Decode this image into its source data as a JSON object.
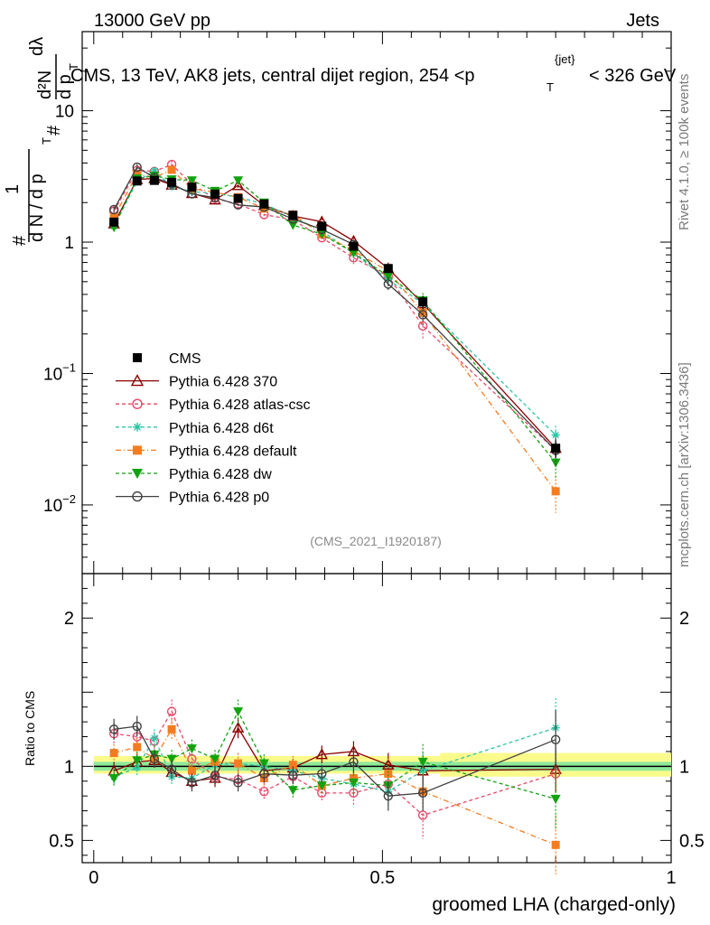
{
  "header": {
    "energy_label": "13000 GeV pp",
    "category_label": "Jets"
  },
  "side_labels": {
    "rivet": "Rivet 4.1.0, ≥ 100k events",
    "mcplots": "mcplots.cern.ch [arXiv:1306.3436]"
  },
  "analysis_ref": "(CMS_2021_I1920187)",
  "chart_data": [
    {
      "type": "line",
      "yscale": "log",
      "title_main": "CMS, 13 TeV, AK8 jets, central dijet region, 254 <",
      "title_var": "p",
      "title_sup": "{jet}",
      "title_sub": "T",
      "title_end": "< 326 GeV",
      "ylabel": "1/dN/dpT dN^2/dpT dλ",
      "ylabel_parts": {
        "num1": "#",
        "den1": "d N / d p",
        "num2": "d²N",
        "den2": "d p",
        "tail": "dλ",
        "sub": "T"
      },
      "xlim": [
        -0.02,
        1.0
      ],
      "ylim": [
        0.003,
        40
      ],
      "yticks": [
        {
          "value": 0.01,
          "base": "10",
          "exp": "−2"
        },
        {
          "value": 0.1,
          "base": "10",
          "exp": "−1"
        },
        {
          "value": 1,
          "base": "1",
          "exp": ""
        },
        {
          "value": 10,
          "base": "10",
          "exp": ""
        }
      ],
      "x": [
        0.035,
        0.075,
        0.105,
        0.135,
        0.17,
        0.21,
        0.25,
        0.295,
        0.345,
        0.395,
        0.45,
        0.51,
        0.57,
        0.8
      ],
      "series": [
        {
          "name": "CMS",
          "color": "#000000",
          "marker": "square",
          "dash": "",
          "errors": [
            0.08,
            0.2,
            0.15,
            0.15,
            0.14,
            0.12,
            0.12,
            0.1,
            0.08,
            0.07,
            0.06,
            0.05,
            0.04,
            0.004
          ],
          "values": [
            1.42,
            2.92,
            2.95,
            2.85,
            2.62,
            2.32,
            2.15,
            1.95,
            1.6,
            1.32,
            0.93,
            0.63,
            0.35,
            0.027
          ]
        },
        {
          "name": "Pythia 6.428 370",
          "color": "#8b0000",
          "marker": "triangle",
          "dash": "",
          "errors": [
            0.1,
            0.2,
            0.18,
            0.18,
            0.15,
            0.15,
            0.15,
            0.12,
            0.1,
            0.08,
            0.07,
            0.06,
            0.04,
            0.006
          ],
          "values": [
            1.38,
            3.0,
            3.05,
            2.72,
            2.35,
            2.1,
            2.7,
            1.9,
            1.58,
            1.43,
            1.02,
            0.63,
            0.34,
            0.027
          ]
        },
        {
          "name": "Pythia 6.428 atlas-csc",
          "color": "#e8476a",
          "marker": "circle",
          "dash": "4,3",
          "errors": [
            0.1,
            0.25,
            0.2,
            0.25,
            0.15,
            0.15,
            0.15,
            0.12,
            0.1,
            0.08,
            0.08,
            0.06,
            0.05,
            0.006
          ],
          "values": [
            1.72,
            3.52,
            3.45,
            3.9,
            2.75,
            2.15,
            1.95,
            1.62,
            1.48,
            1.08,
            0.76,
            0.55,
            0.23,
            0.026
          ]
        },
        {
          "name": "Pythia 6.428 d6t",
          "color": "#2ec4a5",
          "marker": "asterisk",
          "dash": "4,3",
          "errors": [
            0.1,
            0.2,
            0.18,
            0.18,
            0.15,
            0.15,
            0.15,
            0.12,
            0.1,
            0.08,
            0.07,
            0.06,
            0.05,
            0.006
          ],
          "values": [
            1.32,
            2.9,
            3.5,
            2.65,
            2.42,
            2.35,
            2.2,
            1.95,
            1.55,
            1.22,
            0.82,
            0.52,
            0.34,
            0.034
          ]
        },
        {
          "name": "Pythia 6.428 default",
          "color": "#f47c20",
          "marker": "square",
          "dash": "6,3,1,3",
          "errors": [
            0.1,
            0.2,
            0.18,
            0.2,
            0.15,
            0.15,
            0.15,
            0.12,
            0.1,
            0.08,
            0.07,
            0.06,
            0.05,
            0.004
          ],
          "values": [
            1.55,
            3.3,
            3.1,
            3.55,
            2.55,
            2.4,
            2.2,
            1.8,
            1.62,
            1.15,
            0.86,
            0.6,
            0.29,
            0.0127
          ]
        },
        {
          "name": "Pythia 6.428 dw",
          "color": "#11a30f",
          "marker": "triangle-down",
          "dash": "4,3",
          "errors": [
            0.1,
            0.2,
            0.18,
            0.18,
            0.15,
            0.15,
            0.15,
            0.12,
            0.1,
            0.08,
            0.07,
            0.06,
            0.05,
            0.005
          ],
          "values": [
            1.3,
            3.05,
            3.2,
            3.0,
            2.95,
            2.45,
            2.95,
            2.0,
            1.35,
            1.15,
            0.83,
            0.55,
            0.36,
            0.021
          ]
        },
        {
          "name": "Pythia 6.428 p0",
          "color": "#404040",
          "marker": "circle",
          "dash": "",
          "errors": [
            0.1,
            0.2,
            0.18,
            0.18,
            0.15,
            0.15,
            0.15,
            0.12,
            0.1,
            0.08,
            0.07,
            0.06,
            0.05,
            0.006
          ],
          "values": [
            1.77,
            3.72,
            3.1,
            2.78,
            2.33,
            2.18,
            1.92,
            1.85,
            1.5,
            1.25,
            0.96,
            0.48,
            0.28,
            0.026
          ]
        }
      ]
    },
    {
      "type": "line",
      "ylabel": "Ratio to CMS",
      "xlabel": "groomed LHA (charged-only)",
      "xlim": [
        -0.02,
        1.0
      ],
      "ylim": [
        0.35,
        2.3
      ],
      "xticks": [
        {
          "value": 0,
          "label": "0"
        },
        {
          "value": 0.5,
          "label": "0.5"
        },
        {
          "value": 1,
          "label": "1"
        }
      ],
      "yticks": [
        {
          "value": 0.5,
          "label": "0.5"
        },
        {
          "value": 1,
          "label": "1"
        },
        {
          "value": 2,
          "label": "2"
        }
      ],
      "band_inner_frac": 0.03,
      "band_outer_low": [
        0.05,
        0.05,
        0.05,
        0.05,
        0.05,
        0.05,
        0.05,
        0.05,
        0.05,
        0.05,
        0.05,
        0.05,
        0.07,
        0.07
      ],
      "x": [
        0.035,
        0.075,
        0.105,
        0.135,
        0.17,
        0.21,
        0.25,
        0.295,
        0.345,
        0.395,
        0.45,
        0.51,
        0.57,
        0.8
      ],
      "series": [
        {
          "name": "Pythia 6.428 370",
          "values": [
            0.97,
            1.03,
            1.04,
            0.96,
            0.9,
            0.92,
            1.26,
            0.97,
            0.99,
            1.08,
            1.1,
            1.01,
            0.97,
            0.98
          ],
          "errors": [
            0.06,
            0.06,
            0.05,
            0.06,
            0.05,
            0.06,
            0.07,
            0.06,
            0.06,
            0.06,
            0.07,
            0.08,
            0.1,
            0.15
          ]
        },
        {
          "name": "Pythia 6.428 atlas-csc",
          "values": [
            1.22,
            1.2,
            1.17,
            1.37,
            1.05,
            0.93,
            0.91,
            0.83,
            0.93,
            0.82,
            0.82,
            0.88,
            0.67,
            0.95
          ],
          "errors": [
            0.07,
            0.07,
            0.06,
            0.08,
            0.06,
            0.06,
            0.07,
            0.06,
            0.06,
            0.06,
            0.08,
            0.1,
            0.16,
            0.2
          ]
        },
        {
          "name": "Pythia 6.428 d6t",
          "values": [
            0.93,
            0.99,
            1.19,
            0.93,
            0.92,
            1.01,
            1.02,
            1.0,
            0.97,
            0.92,
            0.88,
            0.83,
            0.97,
            1.26
          ],
          "errors": [
            0.06,
            0.06,
            0.06,
            0.06,
            0.06,
            0.06,
            0.07,
            0.06,
            0.06,
            0.06,
            0.08,
            0.09,
            0.12,
            0.2
          ]
        },
        {
          "name": "Pythia 6.428 default",
          "values": [
            1.09,
            1.13,
            1.05,
            1.25,
            0.97,
            1.03,
            1.02,
            0.92,
            1.01,
            0.87,
            0.92,
            0.95,
            0.83,
            0.47
          ],
          "errors": [
            0.06,
            0.06,
            0.06,
            0.07,
            0.06,
            0.06,
            0.07,
            0.06,
            0.06,
            0.06,
            0.08,
            0.1,
            0.12,
            0.2
          ]
        },
        {
          "name": "Pythia 6.428 dw",
          "values": [
            0.92,
            1.04,
            1.08,
            1.05,
            1.12,
            1.05,
            1.37,
            1.02,
            0.84,
            0.87,
            0.89,
            0.87,
            1.03,
            0.78
          ],
          "errors": [
            0.06,
            0.06,
            0.06,
            0.06,
            0.06,
            0.06,
            0.08,
            0.06,
            0.06,
            0.06,
            0.08,
            0.1,
            0.12,
            0.2
          ]
        },
        {
          "name": "Pythia 6.428 p0",
          "values": [
            1.25,
            1.27,
            1.05,
            0.98,
            0.89,
            0.94,
            0.89,
            0.95,
            0.94,
            0.95,
            1.03,
            0.8,
            0.82,
            1.18
          ],
          "errors": [
            0.07,
            0.07,
            0.06,
            0.06,
            0.06,
            0.06,
            0.06,
            0.06,
            0.06,
            0.06,
            0.08,
            0.1,
            0.12,
            0.2
          ]
        }
      ]
    }
  ]
}
